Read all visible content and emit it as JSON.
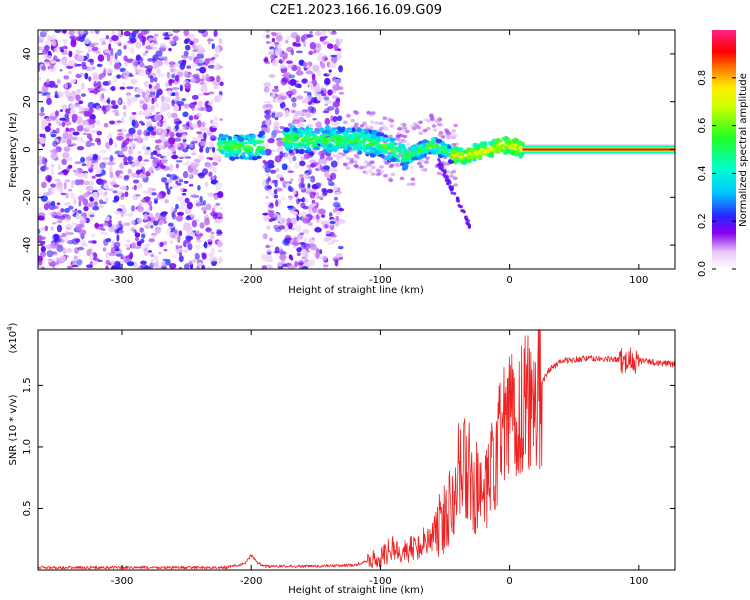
{
  "title": "C2E1.2023.166.16.09.G09",
  "chart_data": [
    {
      "type": "heatmap",
      "xlabel": "Height of straight line (km)",
      "ylabel": "Frequency (Hz)",
      "xlim": [
        -365,
        128
      ],
      "ylim": [
        -50,
        50
      ],
      "xticks": [
        -300,
        -200,
        -100,
        0,
        100
      ],
      "yticks": [
        -40,
        -20,
        0,
        20,
        40
      ],
      "colorbar": {
        "label": "Normalized spectral amplitude",
        "range": [
          0,
          1
        ],
        "ticks": [
          "0.0",
          "0.2",
          "0.4",
          "0.6",
          "0.8"
        ]
      },
      "track": {
        "x": [
          -225,
          -200,
          -170,
          -150,
          -120,
          -100,
          -80,
          -60,
          -45,
          -35,
          -25,
          -15,
          -5,
          5,
          10,
          128
        ],
        "y": [
          1,
          1,
          4,
          4,
          4,
          2,
          -3,
          2,
          -2,
          -3,
          -1,
          0,
          2,
          1,
          0,
          0
        ]
      },
      "noise_regions": [
        [
          -365,
          -223
        ],
        [
          -190,
          -130
        ]
      ],
      "grid": false
    },
    {
      "type": "line",
      "xlabel": "Height of straight line (km)",
      "ylabel": "SNR (10 * v/v)",
      "y_multiplier": "(x10^4)",
      "xlim": [
        -365,
        128
      ],
      "ylim": [
        0,
        1.95
      ],
      "xticks": [
        -300,
        -200,
        -100,
        0,
        100
      ],
      "yticks": [
        "0.5",
        "1.0",
        "1.5"
      ],
      "series": [
        {
          "color": "#ee2222",
          "x": [
            -365,
            -300,
            -220,
            -205,
            -200,
            -195,
            -190,
            -150,
            -120,
            -110,
            -100,
            -90,
            -80,
            -70,
            -60,
            -50,
            -40,
            -30,
            -20,
            -10,
            0,
            10,
            20,
            30,
            40,
            60,
            80,
            100,
            128
          ],
          "y": [
            0.02,
            0.02,
            0.02,
            0.05,
            0.12,
            0.06,
            0.03,
            0.03,
            0.04,
            0.07,
            0.1,
            0.18,
            0.15,
            0.2,
            0.28,
            0.4,
            0.85,
            0.75,
            0.5,
            0.95,
            1.25,
            1.3,
            1.42,
            1.62,
            1.7,
            1.72,
            1.71,
            1.7,
            1.67
          ]
        }
      ],
      "grid": false
    }
  ],
  "colors": {
    "line": "#ee2222",
    "axes": "#000000"
  }
}
